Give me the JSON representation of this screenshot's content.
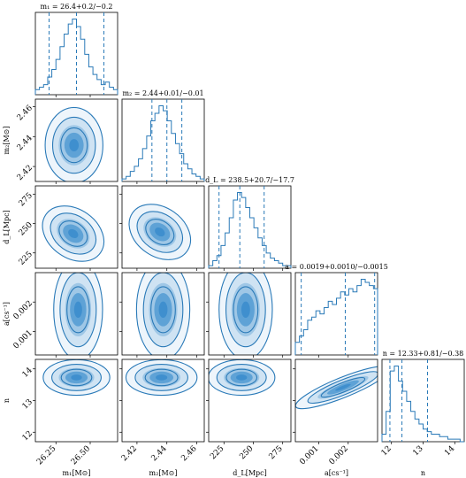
{
  "chart_data": {
    "type": "corner",
    "parameters": [
      {
        "key": "m1",
        "label": "m₁[M⊙]",
        "title": "m₁ = 26.4+0.2/−0.2",
        "median": 26.4,
        "q16": 26.2,
        "q84": 26.6,
        "range": [
          26.1,
          26.7
        ],
        "ticks": [
          26.25,
          26.5
        ],
        "tick_labels": [
          "26.25",
          "26.50"
        ]
      },
      {
        "key": "m2",
        "label": "m₂[M⊙]",
        "title": "m₂ = 2.44+0.01/−0.01",
        "median": 2.44,
        "q16": 2.43,
        "q84": 2.45,
        "range": [
          2.41,
          2.465
        ],
        "ticks": [
          2.42,
          2.44,
          2.46
        ],
        "tick_labels": [
          "2.42",
          "2.44",
          "2.46"
        ]
      },
      {
        "key": "dL",
        "label": "d_L[Mpc]",
        "title": "d_L = 238.5+20.7/−17.7",
        "median": 238.5,
        "q16": 220.8,
        "q84": 259.2,
        "range": [
          212,
          282
        ],
        "ticks": [
          225,
          250,
          275
        ],
        "tick_labels": [
          "225",
          "250",
          "275"
        ]
      },
      {
        "key": "a",
        "label": "a[cs⁻¹]",
        "title": "a = 0.0019+0.0010/−0.0015",
        "median": 0.0019,
        "q16": 0.0004,
        "q84": 0.0029,
        "range": [
          0.0002,
          0.003
        ],
        "ticks": [
          0.001,
          0.002
        ],
        "tick_labels": [
          "0.001",
          "0.002"
        ]
      },
      {
        "key": "n",
        "label": "n",
        "title": "n = 12.33+0.81/−0.38",
        "median": 12.33,
        "q16": 11.95,
        "q84": 13.14,
        "range": [
          11.7,
          14.3
        ],
        "ticks": [
          12,
          13,
          14
        ],
        "tick_labels": [
          "12",
          "13",
          "14"
        ]
      }
    ],
    "histograms": [
      [
        2,
        3,
        4,
        7,
        10,
        14,
        19,
        24,
        28,
        30,
        27,
        22,
        16,
        11,
        8,
        6,
        4,
        5,
        3,
        2
      ],
      [
        1,
        2,
        4,
        6,
        9,
        13,
        18,
        24,
        27,
        30,
        28,
        24,
        19,
        15,
        11,
        7,
        5,
        3,
        2,
        1
      ],
      [
        1,
        3,
        5,
        9,
        14,
        20,
        27,
        30,
        28,
        24,
        20,
        16,
        12,
        9,
        6,
        4,
        3,
        2,
        1,
        1
      ],
      [
        4,
        6,
        8,
        11,
        12,
        14,
        13,
        15,
        17,
        16,
        18,
        20,
        19,
        21,
        20,
        22,
        24,
        23,
        22,
        21
      ],
      [
        3,
        12,
        28,
        30,
        24,
        20,
        16,
        12,
        9,
        7,
        5,
        4,
        3,
        3,
        2,
        2,
        1,
        1,
        1,
        0
      ]
    ],
    "pairs": [
      {
        "x": "m1",
        "y": "m2",
        "cx": 0.47,
        "cy": 0.56,
        "rx": 0.26,
        "ry": 0.34,
        "rot": 0
      },
      {
        "x": "m1",
        "y": "dL",
        "cx": 0.46,
        "cy": 0.58,
        "rx": 0.3,
        "ry": 0.22,
        "rot": 35
      },
      {
        "x": "m2",
        "y": "dL",
        "cx": 0.46,
        "cy": 0.56,
        "rx": 0.3,
        "ry": 0.22,
        "rot": 35
      },
      {
        "x": "m1",
        "y": "a",
        "cx": 0.52,
        "cy": 0.45,
        "rx": 0.22,
        "ry": 0.45,
        "rot": 0
      },
      {
        "x": "m2",
        "y": "a",
        "cx": 0.5,
        "cy": 0.45,
        "rx": 0.24,
        "ry": 0.45,
        "rot": 0
      },
      {
        "x": "dL",
        "y": "a",
        "cx": 0.45,
        "cy": 0.45,
        "rx": 0.24,
        "ry": 0.45,
        "rot": 0
      },
      {
        "x": "m1",
        "y": "n",
        "cx": 0.5,
        "cy": 0.22,
        "rx": 0.3,
        "ry": 0.16,
        "rot": 0
      },
      {
        "x": "m2",
        "y": "n",
        "cx": 0.48,
        "cy": 0.22,
        "rx": 0.32,
        "ry": 0.16,
        "rot": 0
      },
      {
        "x": "dL",
        "y": "n",
        "cx": 0.4,
        "cy": 0.22,
        "rx": 0.3,
        "ry": 0.16,
        "rot": 0
      },
      {
        "x": "a",
        "y": "n",
        "cx": 0.58,
        "cy": 0.34,
        "rx": 0.46,
        "ry": 0.09,
        "rot": -22
      }
    ],
    "colors": {
      "line": "#2a7ab8",
      "fill": "#3f8fce",
      "light": "#cfe3f3",
      "axis": "#000000"
    }
  }
}
